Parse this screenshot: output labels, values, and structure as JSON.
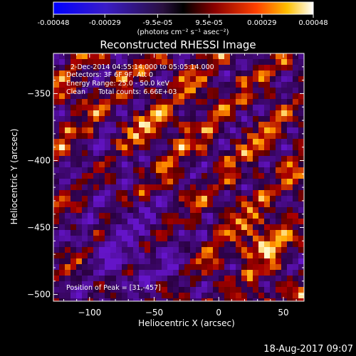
{
  "colorbar": {
    "tick_labels": [
      "-0.00048",
      "-0.00029",
      "-9.5e-05",
      "9.5e-05",
      "0.00029",
      "0.00048"
    ],
    "min": -0.00048,
    "max": 0.00048,
    "units_label": "(photons cm⁻² s⁻¹ asec⁻²)"
  },
  "chart_data": {
    "type": "heatmap",
    "title": "Reconstructed RHESSI Image",
    "xlabel": "Heliocentric X (arcsec)",
    "ylabel": "Heliocentric Y (arcsec)",
    "xlim": [
      -128,
      66
    ],
    "ylim": [
      -505,
      -320
    ],
    "x_ticks": [
      -100,
      -50,
      0,
      50
    ],
    "y_ticks": [
      -350,
      -400,
      -450,
      -500
    ],
    "x_tick_labels": [
      "−100",
      "−50",
      "0",
      "50"
    ],
    "y_tick_labels": [
      "−350",
      "−400",
      "−450",
      "−500"
    ],
    "peak_position": [
      31,
      -457
    ],
    "annotations": [
      "2-Dec-2014 04:55:14.000 to 05:05:14.000",
      "Detectors: 3F 6F 9F, Att 0",
      "Energy Range: 25.0 - 50.0 keV",
      "Clean      Total counts: 6.66E+03",
      "Position of Peak = [31,-457]"
    ]
  },
  "footer": {
    "date": "18-Aug-2017 09:07"
  }
}
